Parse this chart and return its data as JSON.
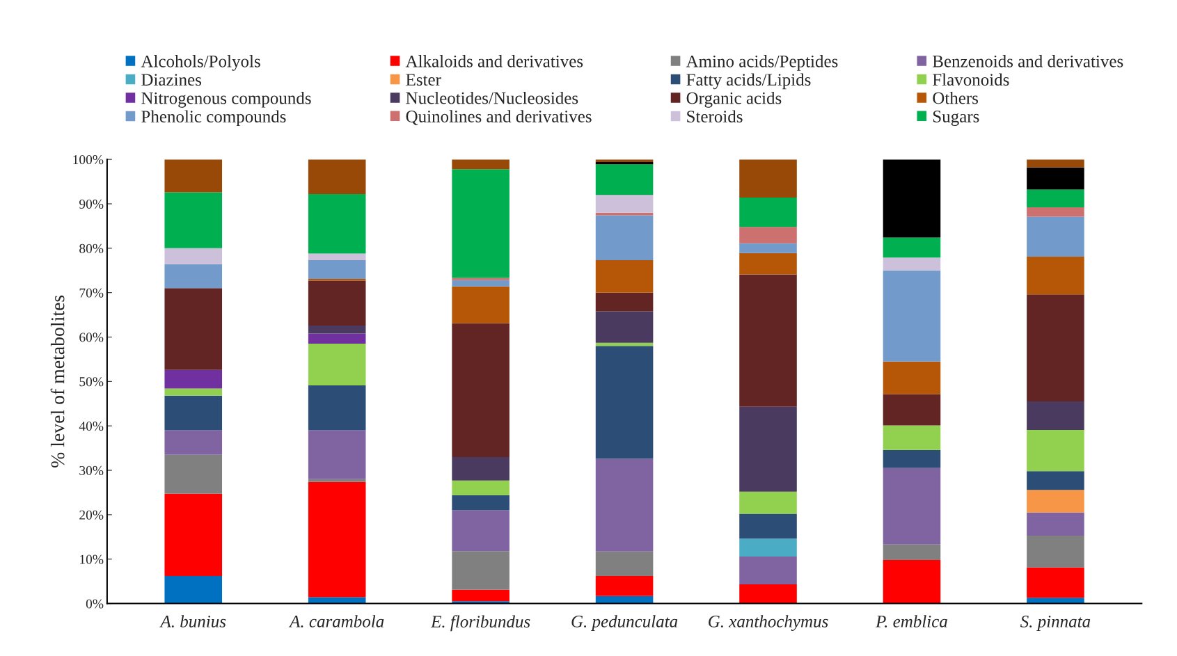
{
  "chart_data": {
    "type": "bar",
    "stacked": true,
    "ylabel": "% level of metabolites",
    "categories": [
      "A. bunius",
      "A. carambola",
      "E. floribundus",
      "G. pedunculata",
      "G. xanthochymus",
      "P. emblica",
      "S. pinnata"
    ],
    "ylim": [
      0,
      100
    ],
    "yticks": [
      {
        "value": 0,
        "label": "0%"
      },
      {
        "value": 10,
        "label": "10%"
      },
      {
        "value": 20,
        "label": "20%"
      },
      {
        "value": 30,
        "label": "30%"
      },
      {
        "value": 40,
        "label": "40%"
      },
      {
        "value": 50,
        "label": "50%"
      },
      {
        "value": 60,
        "label": "60%"
      },
      {
        "value": 70,
        "label": "70%"
      },
      {
        "value": 80,
        "label": "80%"
      },
      {
        "value": 90,
        "label": "90%"
      },
      {
        "value": 100,
        "label": "100%"
      }
    ],
    "grid": false,
    "legend": "top",
    "series": [
      {
        "name": "Alcohols/Polyols",
        "color": "#0070c0",
        "values": [
          6.2,
          1.4,
          0.5,
          1.7,
          0,
          0,
          1.3
        ]
      },
      {
        "name": "Alkaloids and derivatives",
        "color": "#ff0000",
        "values": [
          18.5,
          26.0,
          2.6,
          4.5,
          4.3,
          9.8,
          6.8
        ]
      },
      {
        "name": "Amino acids/Peptides",
        "color": "#808080",
        "values": [
          8.8,
          0.6,
          8.7,
          5.5,
          0,
          3.5,
          7.2
        ]
      },
      {
        "name": "Benzenoids and derivatives",
        "color": "#8064a2",
        "values": [
          5.5,
          11.0,
          9.2,
          20.9,
          6.3,
          17.2,
          5.2
        ]
      },
      {
        "name": "Diazines",
        "color": "#4bacc6",
        "values": [
          0,
          0,
          0,
          0,
          4.0,
          0,
          0
        ]
      },
      {
        "name": "Ester",
        "color": "#f79646",
        "values": [
          0,
          0,
          0,
          0,
          0,
          0,
          5.1
        ]
      },
      {
        "name": "Fatty acids/Lipids",
        "color": "#2c4d75",
        "values": [
          7.8,
          10.1,
          3.4,
          25.4,
          5.6,
          4.1,
          4.2
        ]
      },
      {
        "name": "Flavonoids",
        "color": "#92d050",
        "values": [
          1.6,
          9.4,
          3.3,
          0.7,
          5.0,
          5.5,
          9.3
        ]
      },
      {
        "name": "Nitrogenous compounds",
        "color": "#7030a0",
        "values": [
          4.2,
          2.3,
          0,
          0,
          0,
          0,
          0
        ]
      },
      {
        "name": "Nucleotides/Nucleosides",
        "color": "#4b3a60",
        "values": [
          0,
          1.8,
          5.3,
          7.1,
          19.1,
          0,
          6.4
        ]
      },
      {
        "name": "Organic acids",
        "color": "#632523",
        "values": [
          18.4,
          10.1,
          30.1,
          4.2,
          29.8,
          7.0,
          24.1
        ]
      },
      {
        "name": "Others",
        "color": "#b65708",
        "values": [
          0,
          0.4,
          8.3,
          7.3,
          4.8,
          7.4,
          8.5
        ]
      },
      {
        "name": "Phenolic compounds",
        "color": "#729aca",
        "values": [
          5.4,
          4.2,
          1.4,
          10.1,
          2.2,
          20.5,
          9.0
        ]
      },
      {
        "name": "Quinolines and derivatives",
        "color": "#cc7070",
        "values": [
          0,
          0,
          0.5,
          0.6,
          3.7,
          0,
          2.1
        ]
      },
      {
        "name": "Steroids",
        "color": "#ccc0da",
        "values": [
          3.6,
          1.5,
          0,
          4.0,
          0,
          2.9,
          0
        ]
      },
      {
        "name": "Sugars",
        "color": "#00b050",
        "values": [
          12.6,
          13.4,
          24.5,
          6.9,
          6.6,
          4.5,
          4.0
        ]
      },
      {
        "color": "#000000",
        "values": [
          0,
          0,
          0,
          0.5,
          0,
          17.6,
          5.0
        ]
      },
      {
        "color": "#984807",
        "values": [
          7.4,
          7.8,
          2.2,
          0.6,
          8.6,
          0,
          1.8
        ]
      }
    ]
  }
}
